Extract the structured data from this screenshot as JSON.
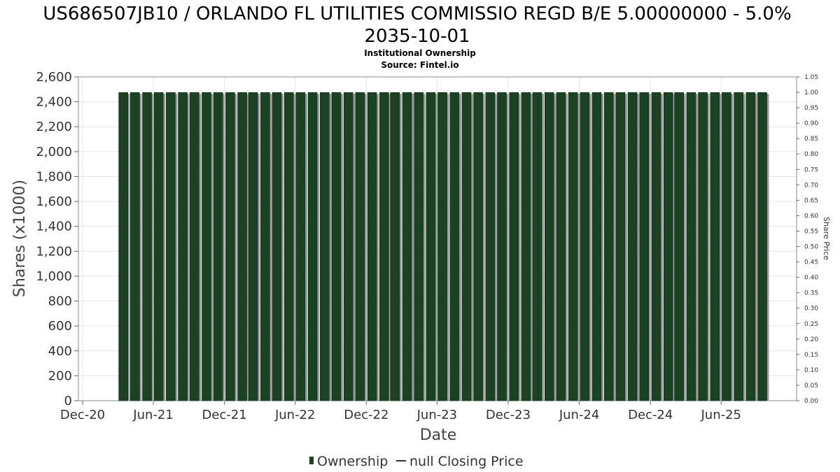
{
  "chart_data": {
    "type": "bar",
    "title_line1": "US686507JB10 / ORLANDO FL UTILITIES COMMISSIO REGD B/E 5.00000000 - 5.0%",
    "title_line2": "2035-10-01",
    "subtitle_line1": "Institutional Ownership",
    "subtitle_line2": "Source: Fintel.io",
    "xlabel": "Date",
    "ylabel": "Shares (x1000)",
    "y2label": "Share Price",
    "x_range": [
      "2020-12-01",
      "2025-10-01"
    ],
    "ylim": [
      0,
      2600
    ],
    "y_ticks": [
      "0",
      "200",
      "400",
      "600",
      "800",
      "1,000",
      "1,200",
      "1,400",
      "1,600",
      "1,800",
      "2,000",
      "2,200",
      "2,400",
      "2,600"
    ],
    "y2lim": [
      0,
      1.05
    ],
    "y2_ticks": [
      "0.00",
      "0.05",
      "0.10",
      "0.15",
      "0.20",
      "0.25",
      "0.30",
      "0.35",
      "0.40",
      "0.45",
      "0.50",
      "0.55",
      "0.60",
      "0.65",
      "0.70",
      "0.75",
      "0.80",
      "0.85",
      "0.90",
      "0.95",
      "1.00",
      "1.05"
    ],
    "x_ticks": [
      {
        "date": "2020-12-01",
        "label": "Dec-20"
      },
      {
        "date": "2021-06-01",
        "label": "Jun-21"
      },
      {
        "date": "2021-12-01",
        "label": "Dec-21"
      },
      {
        "date": "2022-06-01",
        "label": "Jun-22"
      },
      {
        "date": "2022-12-01",
        "label": "Dec-22"
      },
      {
        "date": "2023-06-01",
        "label": "Jun-23"
      },
      {
        "date": "2023-12-01",
        "label": "Dec-23"
      },
      {
        "date": "2024-06-01",
        "label": "Jun-24"
      },
      {
        "date": "2024-12-01",
        "label": "Dec-24"
      },
      {
        "date": "2025-06-01",
        "label": "Jun-25"
      }
    ],
    "bar_dates": [
      "2021-04-01",
      "2021-05-01",
      "2021-06-01",
      "2021-07-01",
      "2021-08-01",
      "2021-09-01",
      "2021-10-01",
      "2021-11-01",
      "2021-12-01",
      "2022-01-01",
      "2022-02-01",
      "2022-03-01",
      "2022-04-01",
      "2022-05-01",
      "2022-06-01",
      "2022-07-01",
      "2022-08-01",
      "2022-09-01",
      "2022-10-01",
      "2022-11-01",
      "2022-12-01",
      "2023-01-01",
      "2023-02-01",
      "2023-03-01",
      "2023-04-01",
      "2023-05-01",
      "2023-06-01",
      "2023-07-01",
      "2023-08-01",
      "2023-09-01",
      "2023-10-01",
      "2023-11-01",
      "2023-12-01",
      "2024-01-01",
      "2024-02-01",
      "2024-03-01",
      "2024-04-01",
      "2024-05-01",
      "2024-06-01",
      "2024-07-01",
      "2024-08-01",
      "2024-09-01",
      "2024-10-01",
      "2024-11-01",
      "2024-12-01",
      "2025-01-01",
      "2025-02-01",
      "2025-03-01",
      "2025-04-01",
      "2025-05-01",
      "2025-06-01",
      "2025-07-01",
      "2025-08-01",
      "2025-09-01",
      "2025-10-01"
    ],
    "series": [
      {
        "name": "Ownership",
        "value": 2475,
        "color": "#1b4323"
      }
    ],
    "legend": [
      {
        "label": "Ownership",
        "marker": "bar",
        "color": "#1b4323"
      },
      {
        "label": "null Closing Price",
        "marker": "line",
        "color": "#333333"
      }
    ],
    "legend_position": "bottom-center",
    "grid": true
  }
}
